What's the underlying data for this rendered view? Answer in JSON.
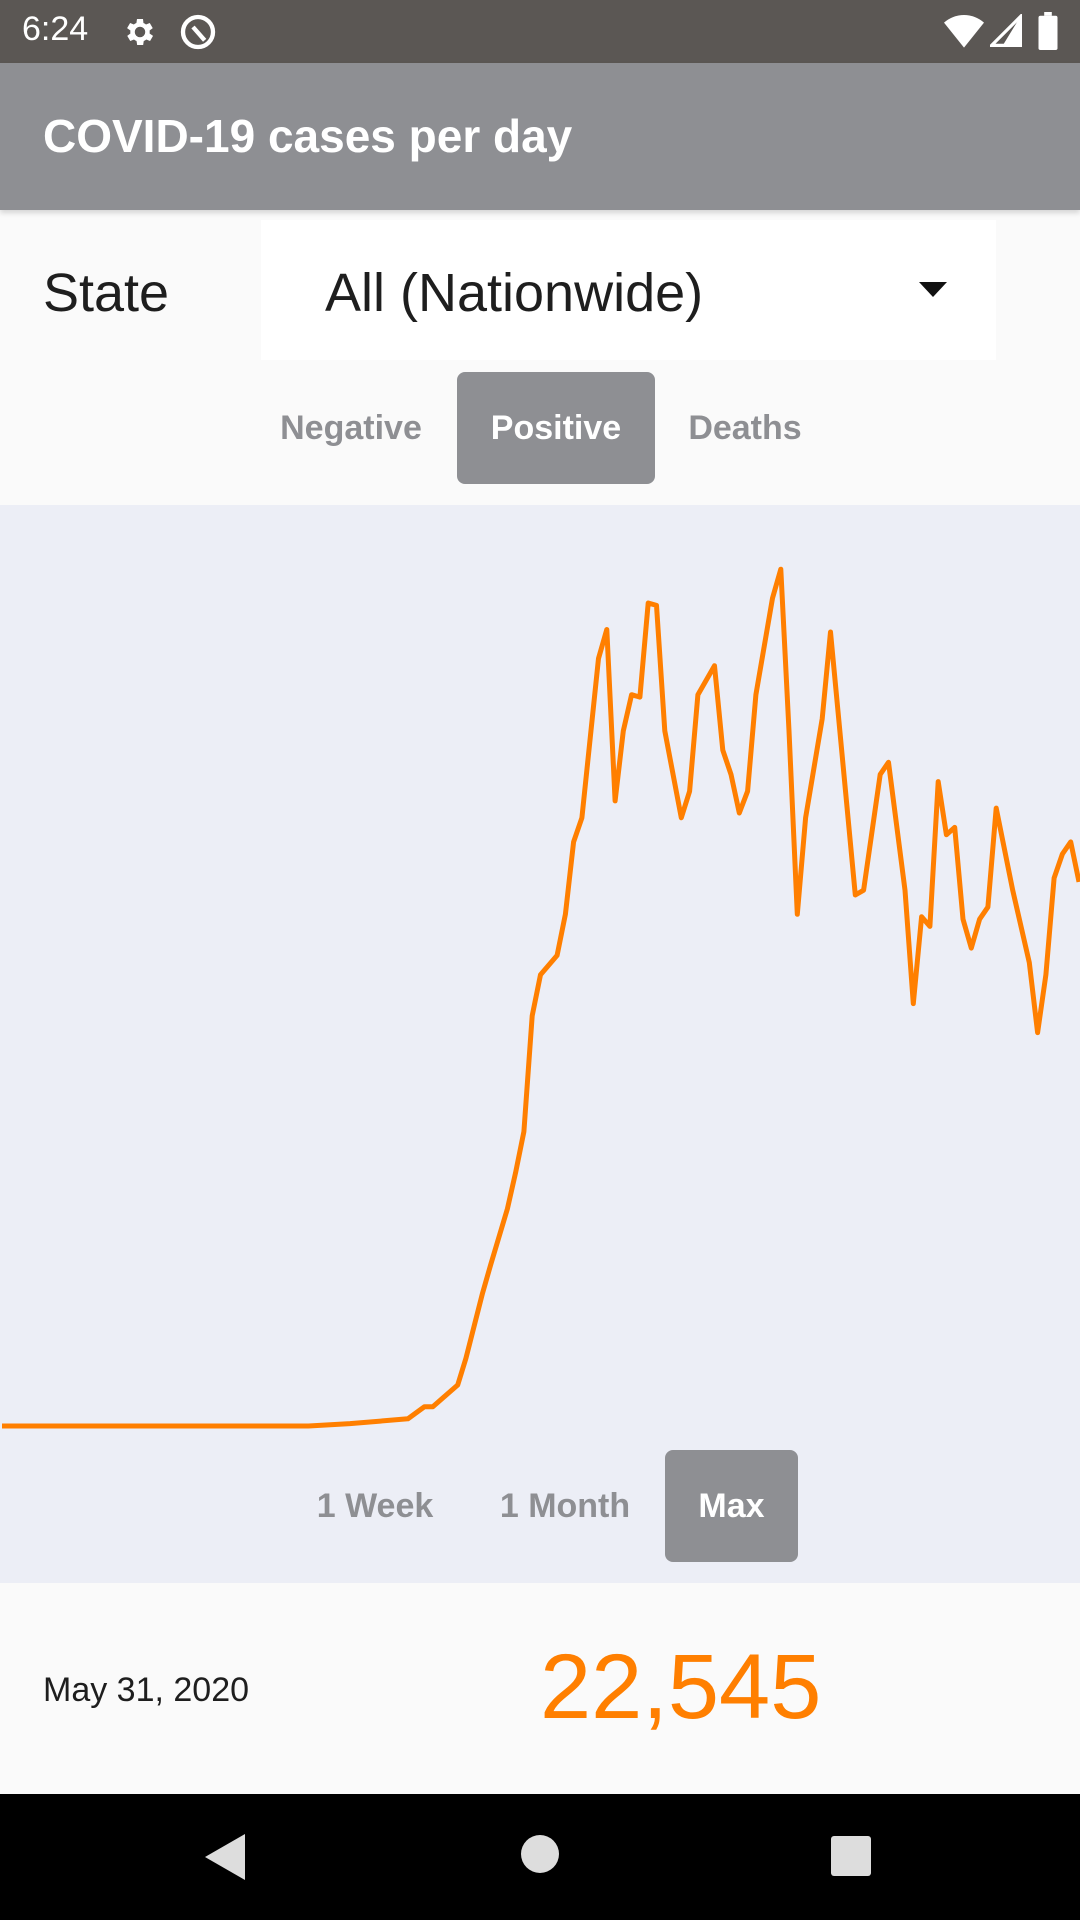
{
  "status_bar": {
    "time": "6:24",
    "icons": [
      "gear-icon",
      "app-q-icon",
      "wifi-icon",
      "signal-icon",
      "battery-icon"
    ]
  },
  "app_bar": {
    "title": "COVID-19 cases per day"
  },
  "state": {
    "label": "State",
    "selected": "All (Nationwide)"
  },
  "metric_tabs": [
    {
      "label": "Negative",
      "selected": false
    },
    {
      "label": "Positive",
      "selected": true
    },
    {
      "label": "Deaths",
      "selected": false
    }
  ],
  "range_tabs": [
    {
      "label": "1 Week",
      "selected": false
    },
    {
      "label": "1 Month",
      "selected": false
    },
    {
      "label": "Max",
      "selected": true
    }
  ],
  "readout": {
    "date": "May 31, 2020",
    "value": "22,545"
  },
  "colors": {
    "accent": "#ff7f00",
    "selected_tab": "#8e8f93",
    "chart_bg": "#eceef6"
  },
  "chart_data": {
    "type": "line",
    "grid": false,
    "x": [
      "2020-01-22",
      "2020-02-28",
      "2020-03-04",
      "2020-03-11",
      "2020-03-13",
      "2020-03-14",
      "2020-03-17",
      "2020-03-18",
      "2020-03-20",
      "2020-03-21",
      "2020-03-23",
      "2020-03-24",
      "2020-03-25",
      "2020-03-26",
      "2020-03-27",
      "2020-03-29",
      "2020-03-30",
      "2020-03-31",
      "2020-04-01",
      "2020-04-03",
      "2020-04-04",
      "2020-04-05",
      "2020-04-06",
      "2020-04-07",
      "2020-04-08",
      "2020-04-09",
      "2020-04-10",
      "2020-04-11",
      "2020-04-13",
      "2020-04-14",
      "2020-04-15",
      "2020-04-17",
      "2020-04-18",
      "2020-04-19",
      "2020-04-20",
      "2020-04-21",
      "2020-04-22",
      "2020-04-24",
      "2020-04-25",
      "2020-04-26",
      "2020-04-27",
      "2020-04-28",
      "2020-04-30",
      "2020-05-01",
      "2020-05-02",
      "2020-05-04",
      "2020-05-05",
      "2020-05-07",
      "2020-05-08",
      "2020-05-10",
      "2020-05-11",
      "2020-05-12",
      "2020-05-13",
      "2020-05-14",
      "2020-05-15",
      "2020-05-16",
      "2020-05-17",
      "2020-05-18",
      "2020-05-19",
      "2020-05-20",
      "2020-05-21",
      "2020-05-23",
      "2020-05-25",
      "2020-05-26",
      "2020-05-27",
      "2020-05-28",
      "2020-05-29",
      "2020-05-30",
      "2020-05-31"
    ],
    "values": [
      0,
      0,
      100,
      300,
      800,
      800,
      1700,
      2800,
      5500,
      6700,
      9000,
      10500,
      12200,
      17000,
      18700,
      19500,
      21200,
      24200,
      25200,
      31800,
      33000,
      25900,
      28800,
      30300,
      30200,
      34100,
      34000,
      28800,
      25200,
      26300,
      30300,
      31500,
      28000,
      27000,
      25400,
      26300,
      30300,
      34300,
      35500,
      28800,
      21200,
      25200,
      29300,
      32900,
      29300,
      22000,
      22200,
      27000,
      27500,
      22200,
      17500,
      21100,
      20700,
      26700,
      24500,
      24800,
      21000,
      19800,
      21000,
      21500,
      25600,
      22200,
      19200,
      16300,
      18700,
      22700,
      23700,
      24200,
      22545
    ],
    "ylim": [
      0,
      37000
    ],
    "color": "#ff7f00"
  }
}
